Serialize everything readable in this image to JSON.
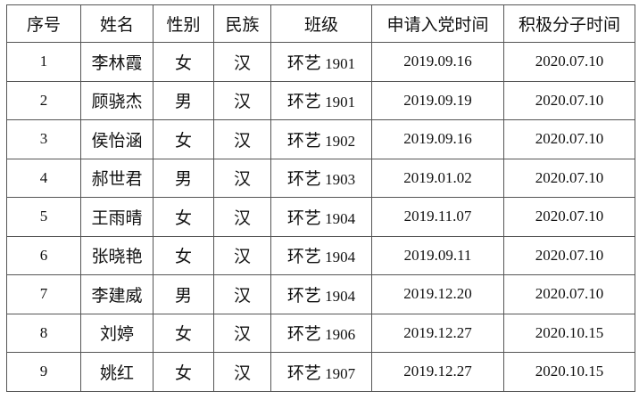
{
  "headers": [
    "序号",
    "姓名",
    "性别",
    "民族",
    "班级",
    "申请入党时间",
    "积极分子时间"
  ],
  "rows": [
    {
      "no": "1",
      "name": "李林霞",
      "gender": "女",
      "ethnicity": "汉",
      "class_prefix": "环艺",
      "class_no": "1901",
      "apply_date": "2019.09.16",
      "activist_date": "2020.07.10"
    },
    {
      "no": "2",
      "name": "顾骁杰",
      "gender": "男",
      "ethnicity": "汉",
      "class_prefix": "环艺",
      "class_no": "1901",
      "apply_date": "2019.09.19",
      "activist_date": "2020.07.10"
    },
    {
      "no": "3",
      "name": "侯怡涵",
      "gender": "女",
      "ethnicity": "汉",
      "class_prefix": "环艺",
      "class_no": "1902",
      "apply_date": "2019.09.16",
      "activist_date": "2020.07.10"
    },
    {
      "no": "4",
      "name": "郝世君",
      "gender": "男",
      "ethnicity": "汉",
      "class_prefix": "环艺",
      "class_no": "1903",
      "apply_date": "2019.01.02",
      "activist_date": "2020.07.10"
    },
    {
      "no": "5",
      "name": "王雨晴",
      "gender": "女",
      "ethnicity": "汉",
      "class_prefix": "环艺",
      "class_no": "1904",
      "apply_date": "2019.11.07",
      "activist_date": "2020.07.10"
    },
    {
      "no": "6",
      "name": "张晓艳",
      "gender": "女",
      "ethnicity": "汉",
      "class_prefix": "环艺",
      "class_no": "1904",
      "apply_date": "2019.09.11",
      "activist_date": "2020.07.10"
    },
    {
      "no": "7",
      "name": "李建威",
      "gender": "男",
      "ethnicity": "汉",
      "class_prefix": "环艺",
      "class_no": "1904",
      "apply_date": "2019.12.20",
      "activist_date": "2020.07.10"
    },
    {
      "no": "8",
      "name": "刘婷",
      "gender": "女",
      "ethnicity": "汉",
      "class_prefix": "环艺",
      "class_no": "1906",
      "apply_date": "2019.12.27",
      "activist_date": "2020.10.15"
    },
    {
      "no": "9",
      "name": "姚红",
      "gender": "女",
      "ethnicity": "汉",
      "class_prefix": "环艺",
      "class_no": "1907",
      "apply_date": "2019.12.27",
      "activist_date": "2020.10.15"
    }
  ]
}
